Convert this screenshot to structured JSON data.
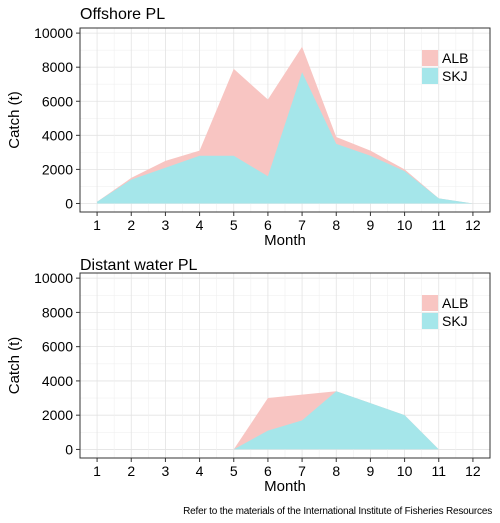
{
  "chart_data": [
    {
      "type": "area",
      "title": "Offshore PL",
      "xlabel": "Month",
      "ylabel": "Catch (t)",
      "x": [
        1,
        2,
        3,
        4,
        5,
        6,
        7,
        8,
        9,
        10,
        11,
        12
      ],
      "xticks": [
        "1",
        "2",
        "3",
        "4",
        "5",
        "6",
        "7",
        "8",
        "9",
        "10",
        "11",
        "12"
      ],
      "yticks": [
        "0",
        "2000",
        "4000",
        "6000",
        "8000",
        "10000"
      ],
      "ylim": [
        0,
        10000
      ],
      "grid": true,
      "legend_position": "top-right",
      "stacked": false,
      "series": [
        {
          "name": "ALB",
          "color": "#f8c5c2",
          "values": [
            100,
            1500,
            2500,
            3100,
            7900,
            6100,
            9200,
            3900,
            3100,
            2000,
            300,
            0
          ]
        },
        {
          "name": "SKJ",
          "color": "#a5e6ea",
          "values": [
            100,
            1400,
            2100,
            2800,
            2800,
            1600,
            7700,
            3500,
            2800,
            1900,
            300,
            0
          ]
        }
      ]
    },
    {
      "type": "area",
      "title": "Distant water PL",
      "xlabel": "Month",
      "ylabel": "Catch (t)",
      "x": [
        1,
        2,
        3,
        4,
        5,
        6,
        7,
        8,
        9,
        10,
        11,
        12
      ],
      "xticks": [
        "1",
        "2",
        "3",
        "4",
        "5",
        "6",
        "7",
        "8",
        "9",
        "10",
        "11",
        "12"
      ],
      "yticks": [
        "0",
        "2000",
        "4000",
        "6000",
        "8000",
        "10000"
      ],
      "ylim": [
        0,
        10000
      ],
      "grid": true,
      "legend_position": "top-right",
      "stacked": false,
      "series": [
        {
          "name": "ALB",
          "color": "#f8c5c2",
          "values": [
            null,
            null,
            null,
            null,
            0,
            3000,
            3200,
            3400,
            2700,
            2000,
            0,
            null
          ]
        },
        {
          "name": "SKJ",
          "color": "#a5e6ea",
          "values": [
            null,
            null,
            null,
            null,
            0,
            1100,
            1700,
            3400,
            2700,
            2000,
            0,
            null
          ]
        }
      ]
    }
  ],
  "source_note": "Refer to the materials of the International Institute of Fisheries Resources"
}
